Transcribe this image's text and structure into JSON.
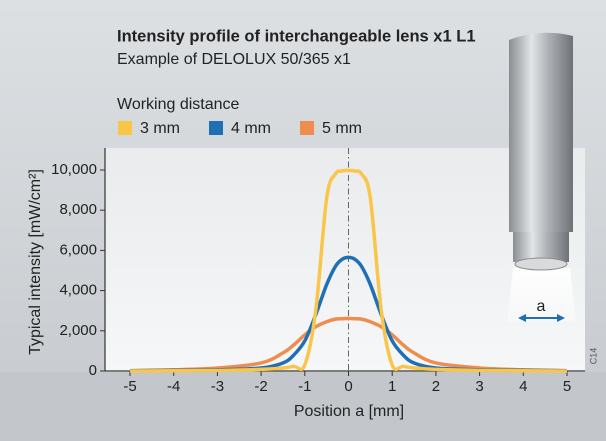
{
  "chart_data": {
    "type": "line",
    "title": "Intensity profile of interchangeable lens x1 L1",
    "subtitle": "Example of DELOLUX 50/365 x1",
    "legend_title": "Working distance",
    "xlabel": "Position a [mm]",
    "ylabel": "Typical intensity  [mW/cm²]",
    "annotation": "C14",
    "illustration_label": "a",
    "x": [
      -5,
      -4,
      -3,
      -2,
      -1.5,
      -1.25,
      -1,
      -0.75,
      -0.5,
      -0.3,
      -0.15,
      0,
      0.15,
      0.3,
      0.5,
      0.75,
      1,
      1.25,
      1.5,
      2,
      3,
      4,
      5
    ],
    "series": [
      {
        "name": "3 mm",
        "color": "#f9c54a",
        "values": [
          0,
          10,
          30,
          80,
          150,
          230,
          300,
          3000,
          8600,
          9800,
          9950,
          9980,
          9950,
          9800,
          8600,
          3000,
          300,
          230,
          150,
          80,
          30,
          10,
          0
        ]
      },
      {
        "name": "4 mm",
        "color": "#1f6fb5",
        "values": [
          10,
          30,
          60,
          150,
          400,
          800,
          1500,
          2800,
          4300,
          5200,
          5550,
          5650,
          5550,
          5200,
          4300,
          2800,
          1500,
          800,
          400,
          150,
          60,
          30,
          10
        ]
      },
      {
        "name": "5 mm",
        "color": "#ef8d4f",
        "values": [
          20,
          60,
          150,
          400,
          900,
          1300,
          1800,
          2200,
          2450,
          2580,
          2600,
          2620,
          2600,
          2580,
          2450,
          2200,
          1800,
          1300,
          900,
          400,
          150,
          60,
          20
        ]
      }
    ],
    "xlim": [
      -5,
      5
    ],
    "xticks": [
      -5,
      -4,
      -3,
      -2,
      -1,
      0,
      1,
      2,
      3,
      4,
      5
    ],
    "ylim": [
      0,
      10000
    ],
    "yticks": [
      0,
      {
        "value": 2000,
        "label": "2,000"
      },
      {
        "value": 4000,
        "label": "4,000"
      },
      {
        "value": 6000,
        "label": "6,000"
      },
      {
        "value": 8000,
        "label": "8,000"
      },
      {
        "value": 10000,
        "label": "10,000"
      }
    ],
    "grid": false
  }
}
